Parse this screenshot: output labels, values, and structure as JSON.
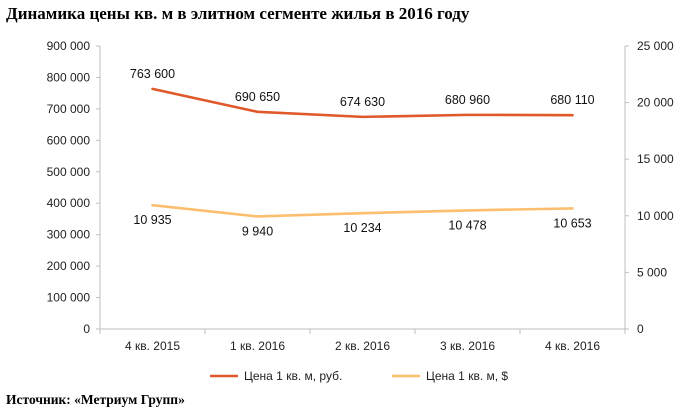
{
  "title": "Динамика цены кв. м в элитном сегменте жилья в 2016 году",
  "source": "Источник: «Метриум Групп»",
  "chart_data": {
    "type": "line",
    "categories": [
      "4 кв. 2015",
      "1 кв. 2016",
      "2 кв. 2016",
      "3 кв. 2016",
      "4 кв. 2016"
    ],
    "series": [
      {
        "name": "Цена 1 кв. м, руб.",
        "axis": "left",
        "color": "#e0592a",
        "values": [
          763600,
          690650,
          674630,
          680960,
          680110
        ],
        "labels": [
          "763 600",
          "690 650",
          "674 630",
          "680 960",
          "680 110"
        ]
      },
      {
        "name": "Цена 1 кв. м, $",
        "axis": "right",
        "color": "#fdbf6f",
        "values": [
          10935,
          9940,
          10234,
          10478,
          10653
        ],
        "labels": [
          "10 935",
          "9 940",
          "10 234",
          "10 478",
          "10 653"
        ]
      }
    ],
    "y_left": {
      "range": [
        0,
        900000
      ],
      "ticks": [
        "0",
        "100 000",
        "200 000",
        "300 000",
        "400 000",
        "500 000",
        "600 000",
        "700 000",
        "800 000",
        "900 000"
      ]
    },
    "y_right": {
      "range": [
        0,
        25000
      ],
      "ticks": [
        "0",
        "5 000",
        "10 000",
        "15 000",
        "20 000",
        "25 000"
      ]
    },
    "grid": false,
    "legend_position": "bottom"
  }
}
